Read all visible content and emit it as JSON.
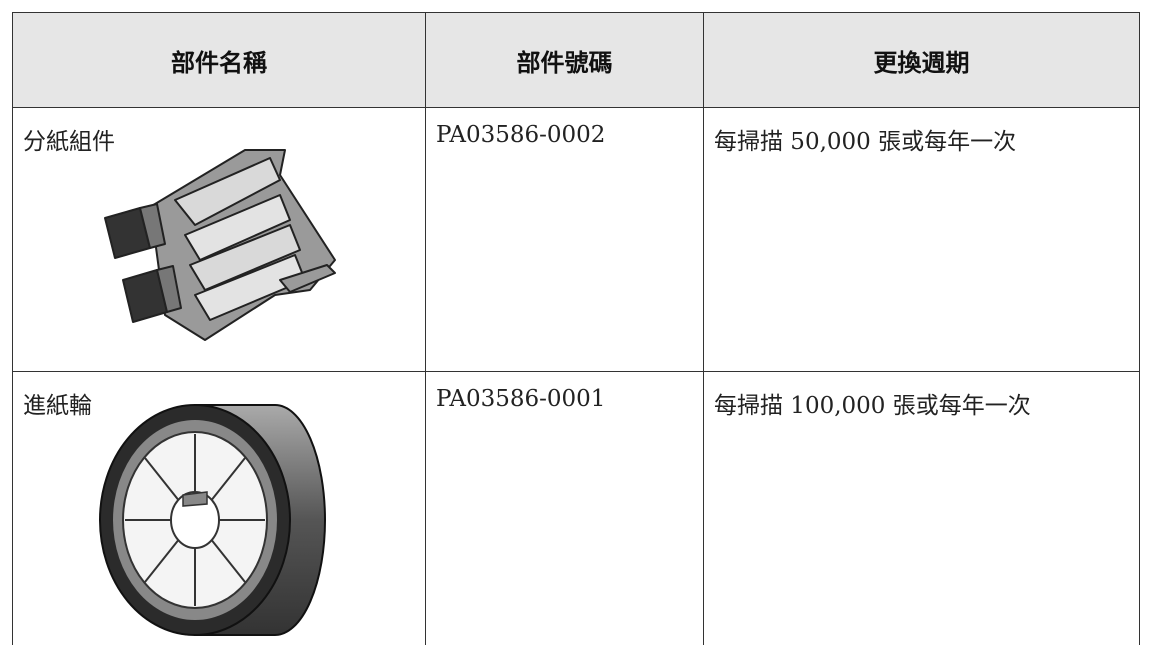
{
  "table": {
    "headers": [
      "部件名稱",
      "部件號碼",
      "更換週期"
    ],
    "rows": [
      [
        "分紙組件",
        "PA03586-0002",
        "每掃描 50,000 張或每年一次"
      ],
      [
        "進紙輪",
        "PA03586-0001",
        "每掃描 100,000 張或每年一次"
      ]
    ]
  }
}
